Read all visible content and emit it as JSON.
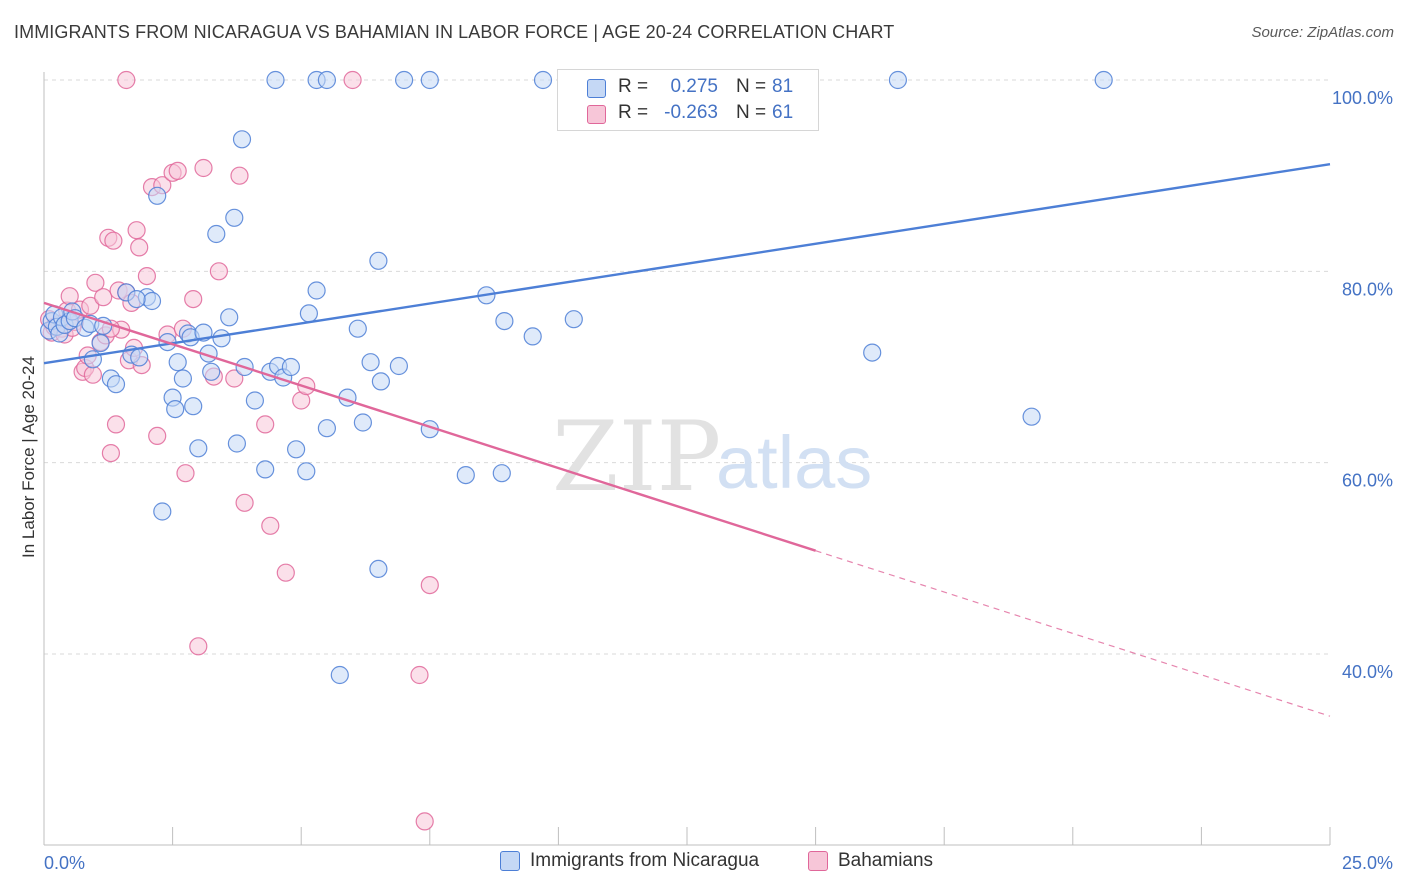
{
  "title": "IMMIGRANTS FROM NICARAGUA VS BAHAMIAN IN LABOR FORCE | AGE 20-24 CORRELATION CHART",
  "source": "Source: ZipAtlas.com",
  "watermark": {
    "zip": "ZIP",
    "atlas": "atlas"
  },
  "colors": {
    "blue": "#4d7fd6",
    "blue_fill": "#c5d8f5",
    "pink": "#e0679a",
    "pink_fill": "#f7c6d8",
    "axis_text": "#4472c4",
    "grid": "#d9d9d9"
  },
  "stats": {
    "rows": [
      {
        "r_label": "R =",
        "r_value": "0.275",
        "n_label": "N =",
        "n_value": "81"
      },
      {
        "r_label": "R =",
        "r_value": "-0.263",
        "n_label": "N =",
        "n_value": "61"
      }
    ]
  },
  "legend": {
    "items": [
      {
        "label": "Immigrants from Nicaragua"
      },
      {
        "label": "Bahamians"
      }
    ]
  },
  "chart_data": {
    "type": "scatter",
    "title": "IMMIGRANTS FROM NICARAGUA VS BAHAMIAN IN LABOR FORCE | AGE 20-24 CORRELATION CHART",
    "xlabel": "",
    "ylabel": "In Labor Force | Age 20-24",
    "xlim": [
      0,
      25
    ],
    "ylim": [
      22,
      102
    ],
    "x_tick_labels": [
      {
        "value": 0,
        "label": "0.0%"
      },
      {
        "value": 25,
        "label": "25.0%"
      }
    ],
    "y_tick_labels": [
      {
        "value": 100,
        "label": "100.0%"
      },
      {
        "value": 80,
        "label": "80.0%"
      },
      {
        "value": 60,
        "label": "60.0%"
      },
      {
        "value": 40,
        "label": "40.0%"
      }
    ],
    "grid": true,
    "legend_position": "bottom",
    "series": [
      {
        "name": "Immigrants from Nicaragua",
        "color": "#4d7fd6",
        "r": "0.275",
        "n": "81",
        "trend": {
          "x": [
            0,
            25
          ],
          "y": [
            70.4,
            91.2
          ]
        },
        "points": [
          [
            0.1,
            73.8
          ],
          [
            0.15,
            74.8
          ],
          [
            0.2,
            75.5
          ],
          [
            0.25,
            74.2
          ],
          [
            0.3,
            73.5
          ],
          [
            0.35,
            75.2
          ],
          [
            0.4,
            74.4
          ],
          [
            0.5,
            74.8
          ],
          [
            0.55,
            75.8
          ],
          [
            0.6,
            75.1
          ],
          [
            0.8,
            74.1
          ],
          [
            0.9,
            74.5
          ],
          [
            0.95,
            70.8
          ],
          [
            1.1,
            72.5
          ],
          [
            1.15,
            74.3
          ],
          [
            1.3,
            68.8
          ],
          [
            1.4,
            68.2
          ],
          [
            1.6,
            77.8
          ],
          [
            1.7,
            71.3
          ],
          [
            1.85,
            71.0
          ],
          [
            2.0,
            77.3
          ],
          [
            2.1,
            76.9
          ],
          [
            2.2,
            87.9
          ],
          [
            2.3,
            54.9
          ],
          [
            2.4,
            72.6
          ],
          [
            2.5,
            66.8
          ],
          [
            2.55,
            65.6
          ],
          [
            2.6,
            70.5
          ],
          [
            2.7,
            68.8
          ],
          [
            2.8,
            73.5
          ],
          [
            2.85,
            73.1
          ],
          [
            2.9,
            65.9
          ],
          [
            3.0,
            61.5
          ],
          [
            3.1,
            73.6
          ],
          [
            3.2,
            71.4
          ],
          [
            3.25,
            69.5
          ],
          [
            3.35,
            83.9
          ],
          [
            3.45,
            73.0
          ],
          [
            3.6,
            75.2
          ],
          [
            3.7,
            85.6
          ],
          [
            3.75,
            62.0
          ],
          [
            3.85,
            93.8
          ],
          [
            3.9,
            70.0
          ],
          [
            4.1,
            66.5
          ],
          [
            4.3,
            59.3
          ],
          [
            4.4,
            69.5
          ],
          [
            4.55,
            70.1
          ],
          [
            4.65,
            68.9
          ],
          [
            4.8,
            70.0
          ],
          [
            4.9,
            61.4
          ],
          [
            5.1,
            59.1
          ],
          [
            5.15,
            75.6
          ],
          [
            5.3,
            78.0
          ],
          [
            5.5,
            63.6
          ],
          [
            5.75,
            37.8
          ],
          [
            5.9,
            66.8
          ],
          [
            6.1,
            74.0
          ],
          [
            6.2,
            64.2
          ],
          [
            6.35,
            70.5
          ],
          [
            6.5,
            81.1
          ],
          [
            6.55,
            68.5
          ],
          [
            6.9,
            70.1
          ],
          [
            7.5,
            63.5
          ],
          [
            8.2,
            58.7
          ],
          [
            8.6,
            77.5
          ],
          [
            8.9,
            58.9
          ],
          [
            8.95,
            74.8
          ],
          [
            9.5,
            73.2
          ],
          [
            10.3,
            75.0
          ],
          [
            12.4,
            98.3
          ],
          [
            16.1,
            71.5
          ],
          [
            19.2,
            64.8
          ],
          [
            4.5,
            100
          ],
          [
            5.3,
            100
          ],
          [
            5.5,
            100
          ],
          [
            7.0,
            100
          ],
          [
            7.5,
            100
          ],
          [
            9.7,
            100
          ],
          [
            10.6,
            100
          ],
          [
            16.6,
            100
          ],
          [
            20.6,
            100
          ],
          [
            6.5,
            48.9
          ],
          [
            1.8,
            77.1
          ]
        ]
      },
      {
        "name": "Bahamians",
        "color": "#e0679a",
        "r": "-0.263",
        "n": "61",
        "trend": {
          "x": [
            0,
            15
          ],
          "y": [
            76.7,
            50.8
          ]
        },
        "trend_dashed": {
          "x": [
            15,
            25
          ],
          "y": [
            50.8,
            33.5
          ]
        },
        "points": [
          [
            0.1,
            75.0
          ],
          [
            0.15,
            73.6
          ],
          [
            0.2,
            74.2
          ],
          [
            0.3,
            74.5
          ],
          [
            0.35,
            74.0
          ],
          [
            0.4,
            73.4
          ],
          [
            0.45,
            75.9
          ],
          [
            0.5,
            77.4
          ],
          [
            0.6,
            74.7
          ],
          [
            0.7,
            76.0
          ],
          [
            0.75,
            69.5
          ],
          [
            0.8,
            69.9
          ],
          [
            0.85,
            71.2
          ],
          [
            0.9,
            76.4
          ],
          [
            0.95,
            69.2
          ],
          [
            1.0,
            78.8
          ],
          [
            1.1,
            72.6
          ],
          [
            1.15,
            77.3
          ],
          [
            1.2,
            73.3
          ],
          [
            1.25,
            83.5
          ],
          [
            1.3,
            61.0
          ],
          [
            1.35,
            83.2
          ],
          [
            1.4,
            64.0
          ],
          [
            1.45,
            78.0
          ],
          [
            1.5,
            73.9
          ],
          [
            1.6,
            77.8
          ],
          [
            1.65,
            70.7
          ],
          [
            1.7,
            76.7
          ],
          [
            1.75,
            72.0
          ],
          [
            1.8,
            84.3
          ],
          [
            1.85,
            82.5
          ],
          [
            1.9,
            70.2
          ],
          [
            2.0,
            79.5
          ],
          [
            2.1,
            88.8
          ],
          [
            2.2,
            62.8
          ],
          [
            2.3,
            89.0
          ],
          [
            2.4,
            73.4
          ],
          [
            2.5,
            90.3
          ],
          [
            2.6,
            90.5
          ],
          [
            2.7,
            74.0
          ],
          [
            2.75,
            58.9
          ],
          [
            2.9,
            77.1
          ],
          [
            3.0,
            40.8
          ],
          [
            3.1,
            90.8
          ],
          [
            3.3,
            69.0
          ],
          [
            3.4,
            80.0
          ],
          [
            3.7,
            68.8
          ],
          [
            3.8,
            90.0
          ],
          [
            3.9,
            55.8
          ],
          [
            4.3,
            64.0
          ],
          [
            4.4,
            53.4
          ],
          [
            4.7,
            48.5
          ],
          [
            5.0,
            66.5
          ],
          [
            5.1,
            68.0
          ],
          [
            1.6,
            100
          ],
          [
            6.0,
            100
          ],
          [
            7.3,
            37.8
          ],
          [
            7.4,
            22.5
          ],
          [
            7.5,
            47.2
          ],
          [
            1.3,
            74.0
          ],
          [
            0.55,
            74.1
          ]
        ]
      }
    ]
  }
}
